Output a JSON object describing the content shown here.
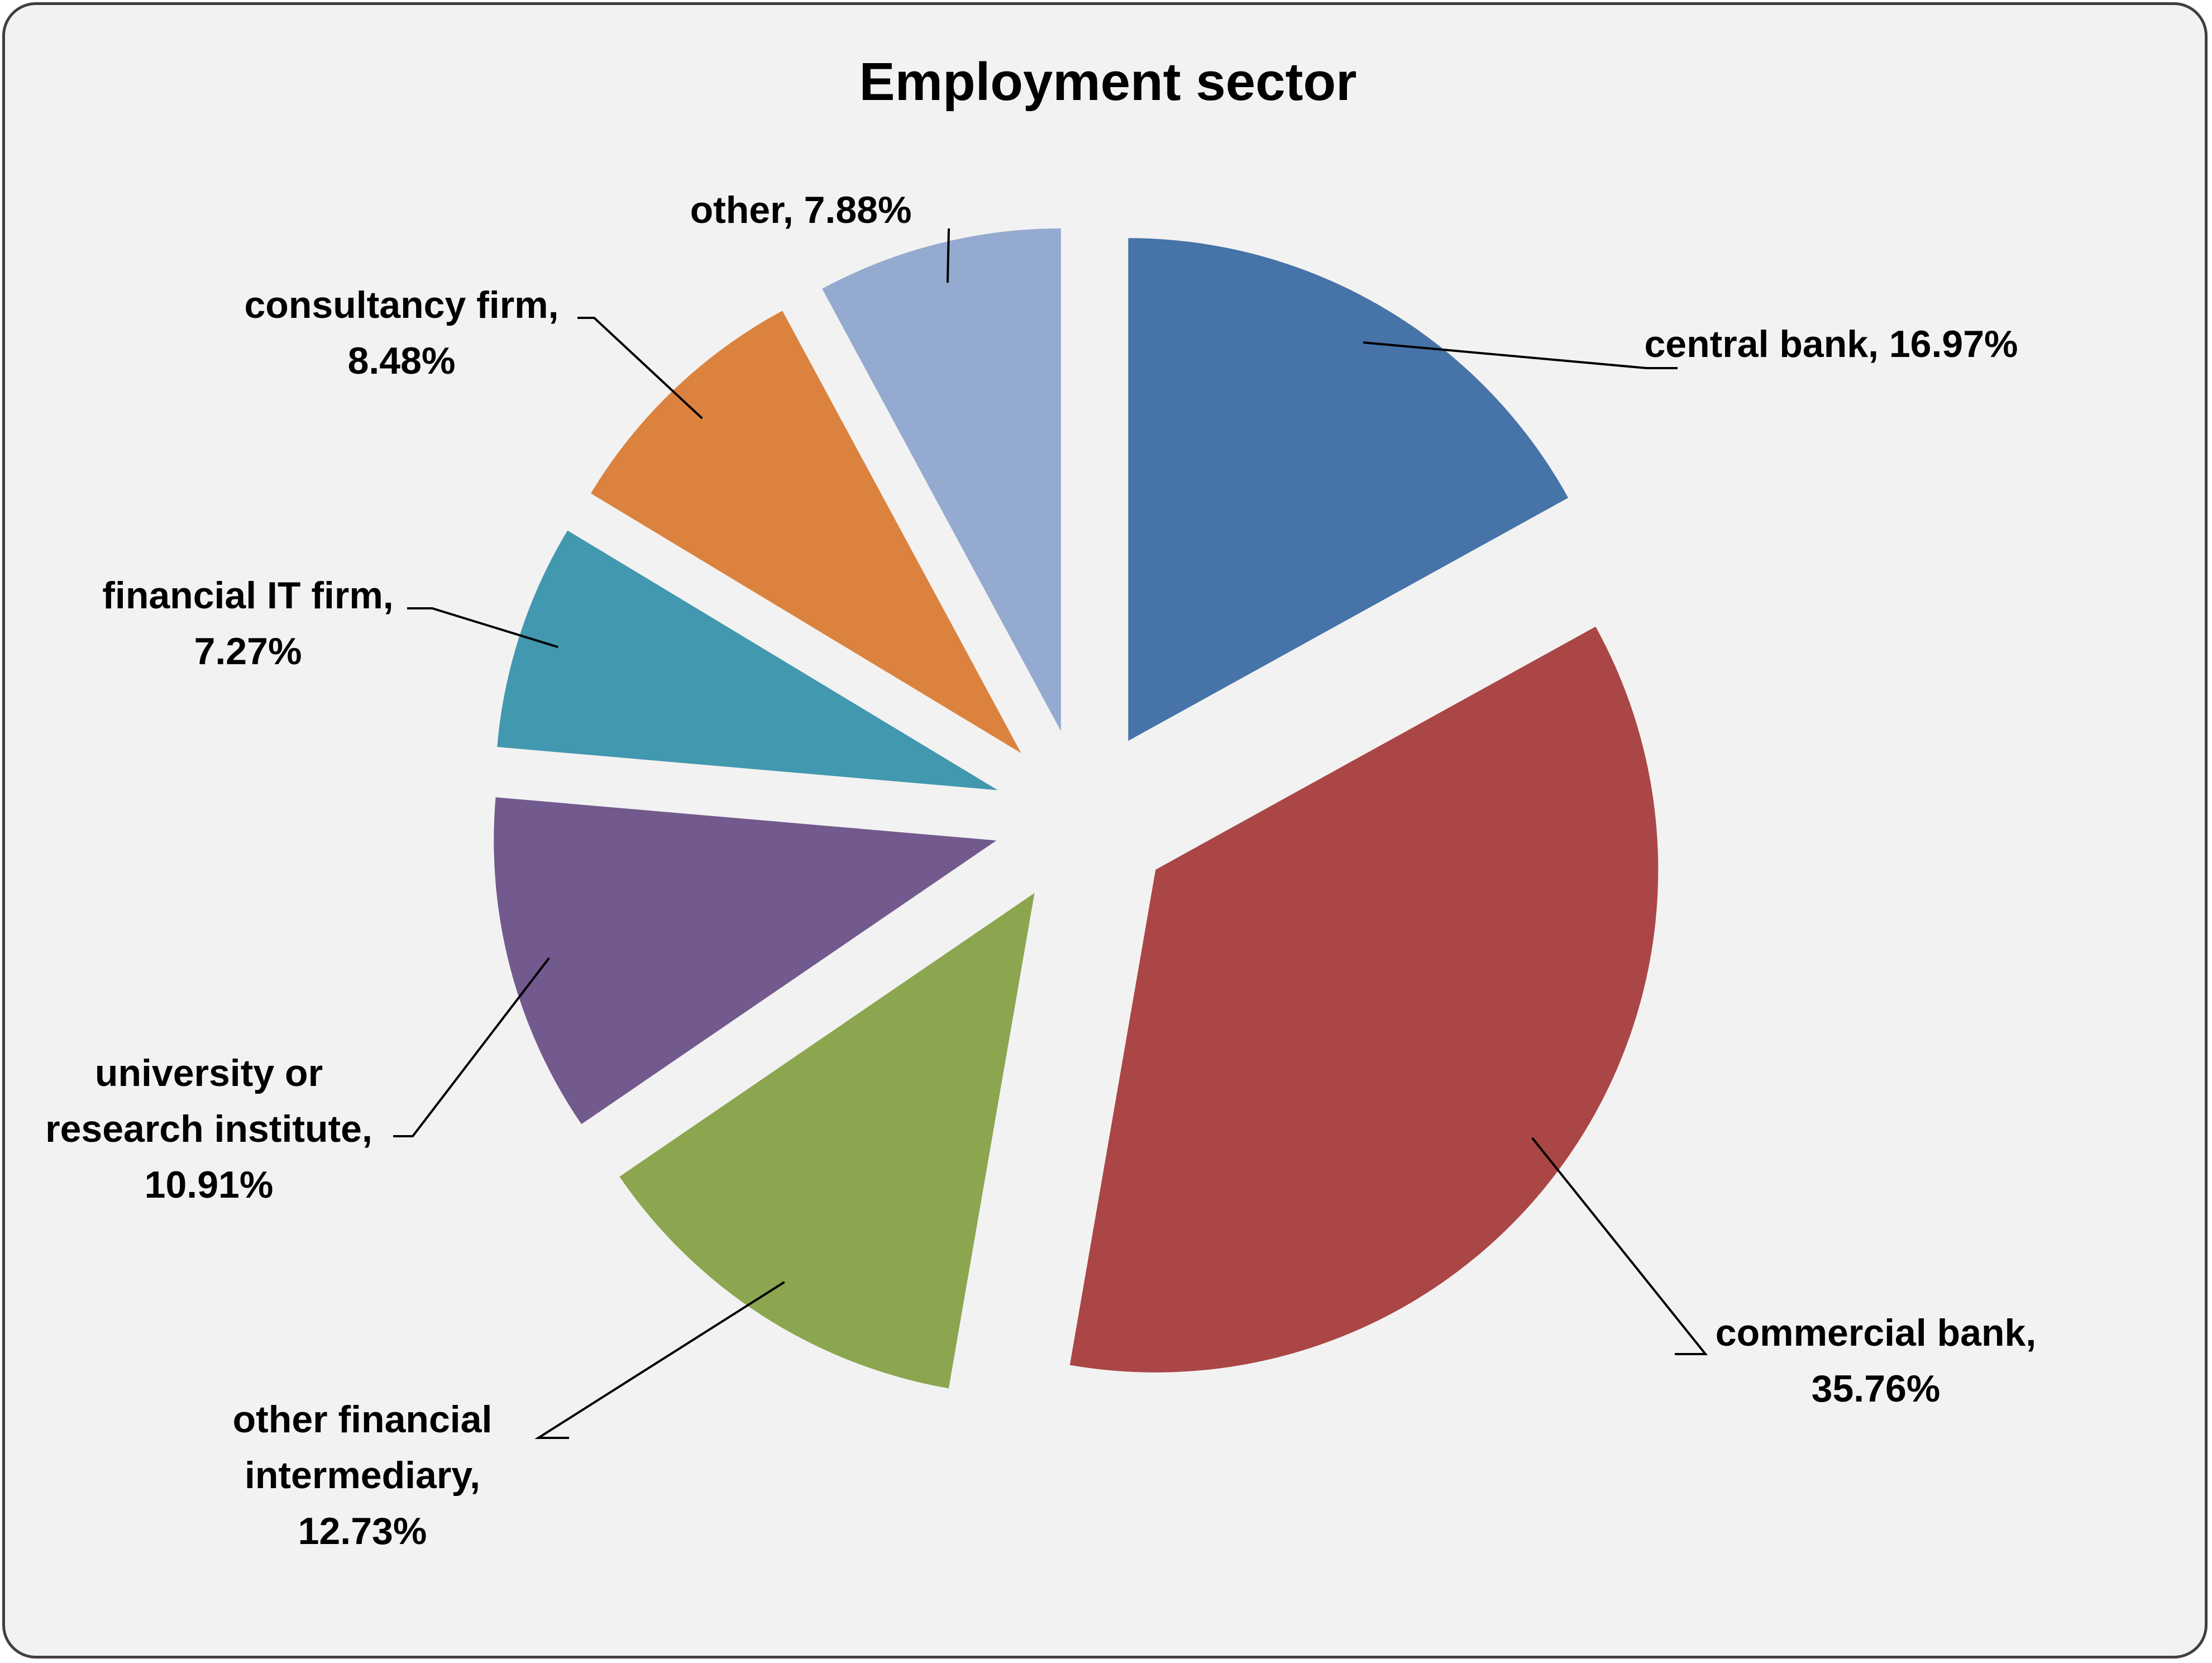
{
  "chart_data": {
    "type": "pie",
    "title": "Employment sector",
    "exploded": true,
    "slices": [
      {
        "label": "central bank",
        "value": 16.97,
        "label_text": "central bank, 16.97%",
        "color": "#4673a8"
      },
      {
        "label": "commercial bank",
        "value": 35.76,
        "label_text": "commercial bank, 35.76%",
        "color": "#aa4645"
      },
      {
        "label": "other financial intermediary",
        "value": 12.73,
        "label_text": "other financial intermediary, 12.73%",
        "color": "#8ba64f"
      },
      {
        "label": "university or research institute",
        "value": 10.91,
        "label_text": "university or research institute, 10.91%",
        "color": "#72598e"
      },
      {
        "label": "financial IT firm",
        "value": 7.27,
        "label_text": "financial IT firm, 7.27%",
        "color": "#4298af"
      },
      {
        "label": "consultancy firm",
        "value": 8.48,
        "label_text": "consultancy firm, 8.48%",
        "color": "#db833e"
      },
      {
        "label": "other",
        "value": 7.88,
        "label_text": "other, 7.88%",
        "color": "#95aad0"
      }
    ]
  }
}
